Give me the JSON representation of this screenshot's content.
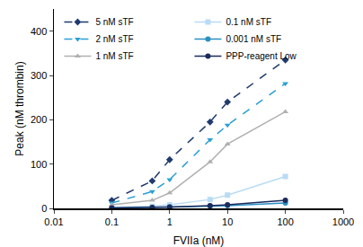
{
  "chart_data": {
    "type": "line",
    "x_label": "FVIIa (nM)",
    "y_label": "Peak (nM thrombin)",
    "x": [
      0.1,
      0.5,
      1,
      5,
      10,
      100
    ],
    "log": "x",
    "xlim": [
      0.01,
      1000
    ],
    "xticks": [
      0.01,
      0.1,
      1,
      10,
      100,
      1000
    ],
    "ylim": [
      0,
      450
    ],
    "yticks": [
      0,
      100,
      200,
      300,
      400
    ],
    "grid": false,
    "legend": "top-left",
    "series": [
      {
        "name": "5 nM sTF",
        "color": "#1f3a6e",
        "marker": "diamond",
        "line_style": "dash",
        "values": [
          18,
          62,
          110,
          195,
          240,
          335
        ]
      },
      {
        "name": "0.1 nM sTF",
        "color": "#b9dcf5",
        "marker": "square",
        "line_style": "solid",
        "values": [
          2,
          5,
          8,
          20,
          30,
          72
        ]
      },
      {
        "name": "2 nM sTF",
        "color": "#2a9fd6",
        "marker": "triangle-down",
        "line_style": "dash",
        "values": [
          12,
          38,
          65,
          155,
          188,
          282
        ]
      },
      {
        "name": "0.001 nM sTF",
        "color": "#2a8fc4",
        "marker": "circle",
        "line_style": "solid",
        "values": [
          1,
          2,
          3,
          5,
          6,
          12
        ]
      },
      {
        "name": "1 nM sTF",
        "color": "#b0b0b0",
        "marker": "triangle-up",
        "line_style": "solid",
        "values": [
          8,
          18,
          35,
          105,
          145,
          218
        ]
      },
      {
        "name": "PPP-reagent Low",
        "color": "#1a2b5c",
        "marker": "circle",
        "line_style": "solid",
        "values": [
          1,
          2,
          3,
          6,
          8,
          18
        ]
      }
    ]
  }
}
